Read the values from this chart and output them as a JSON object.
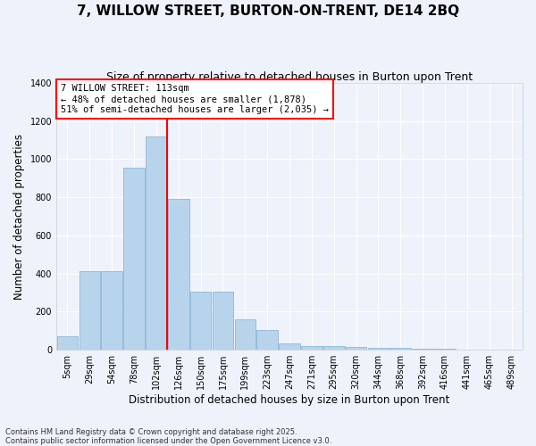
{
  "title": "7, WILLOW STREET, BURTON-ON-TRENT, DE14 2BQ",
  "subtitle": "Size of property relative to detached houses in Burton upon Trent",
  "xlabel": "Distribution of detached houses by size in Burton upon Trent",
  "ylabel": "Number of detached properties",
  "bar_color": "#b8d4ec",
  "bar_edge_color": "#7aafd4",
  "background_color": "#eef2fb",
  "categories": [
    "5sqm",
    "29sqm",
    "54sqm",
    "78sqm",
    "102sqm",
    "126sqm",
    "150sqm",
    "175sqm",
    "199sqm",
    "223sqm",
    "247sqm",
    "271sqm",
    "295sqm",
    "320sqm",
    "344sqm",
    "368sqm",
    "392sqm",
    "416sqm",
    "441sqm",
    "465sqm",
    "489sqm"
  ],
  "values": [
    70,
    415,
    415,
    955,
    1120,
    790,
    305,
    305,
    160,
    105,
    35,
    20,
    20,
    15,
    10,
    8,
    5,
    4,
    3,
    2,
    1
  ],
  "ylim": [
    0,
    1400
  ],
  "yticks": [
    0,
    200,
    400,
    600,
    800,
    1000,
    1200,
    1400
  ],
  "vline_x": 4.5,
  "annotation_text": "7 WILLOW STREET: 113sqm\n← 48% of detached houses are smaller (1,878)\n51% of semi-detached houses are larger (2,035) →",
  "annotation_box_color": "white",
  "annotation_box_edge": "red",
  "vline_color": "red",
  "footnote": "Contains HM Land Registry data © Crown copyright and database right 2025.\nContains public sector information licensed under the Open Government Licence v3.0.",
  "title_fontsize": 11,
  "subtitle_fontsize": 9,
  "label_fontsize": 8.5,
  "tick_fontsize": 7,
  "annot_fontsize": 7.5
}
